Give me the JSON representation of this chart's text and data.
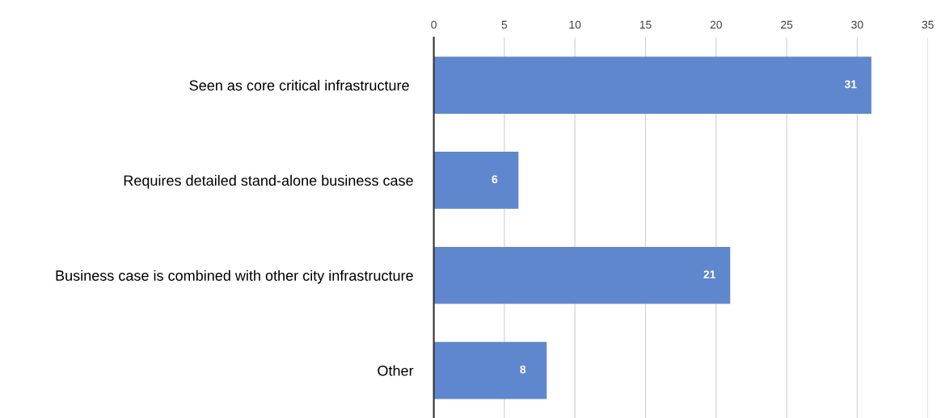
{
  "chart_data": {
    "type": "bar",
    "orientation": "horizontal",
    "categories": [
      "Seen as core critical infrastructure ",
      "Requires detailed stand-alone business case",
      "Business case is combined with other city infrastructure",
      "Other"
    ],
    "values": [
      31,
      6,
      21,
      8
    ],
    "color": "#5f87cd",
    "xlim": [
      0,
      35
    ],
    "xticks": [
      0,
      5,
      10,
      15,
      20,
      25,
      30,
      35
    ],
    "grid": "x",
    "data_labels": true
  }
}
